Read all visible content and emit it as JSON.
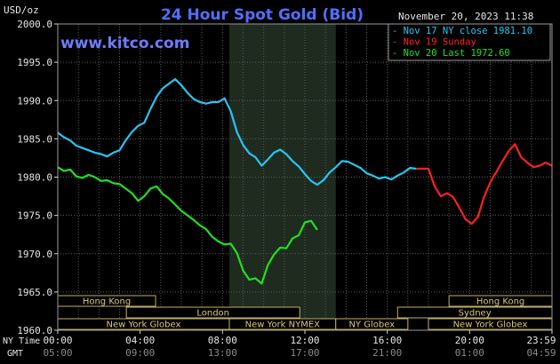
{
  "chart_data": {
    "type": "line",
    "title": "24 Hour Spot Gold (Bid)",
    "unit_label": "USD/oz",
    "watermark": "www.kitco.com",
    "timestamp": "November 20, 2023 11:38",
    "ylim": [
      1960,
      2000
    ],
    "yticks": [
      "2000.0",
      "1995.0",
      "1990.0",
      "1985.0",
      "1980.0",
      "1975.0",
      "1970.0",
      "1965.0",
      "1960.0"
    ],
    "xlim": [
      0,
      24
    ],
    "x_row_labels": {
      "ny": "NY Time",
      "gmt": "GMT"
    },
    "x_ticks_ny": [
      "00:00",
      "04:00",
      "08:00",
      "12:00",
      "16:00",
      "20:00",
      "23:59"
    ],
    "x_ticks_gmt": [
      "05:00",
      "09:00",
      "13:00",
      "17:00",
      "21:00",
      "01:00",
      "04:59"
    ],
    "shaded_hours": [
      8.33,
      13.5
    ],
    "legend": [
      {
        "text": "- Nov 17 NY close 1981.10",
        "color": "#27c6f4"
      },
      {
        "text": "- Nov 19 Sunday",
        "color": "#ff2020"
      },
      {
        "text": "- Nov 20 Last 1972.60",
        "color": "#20e020"
      }
    ],
    "sessions": [
      {
        "label": "Hong Kong",
        "start": 0,
        "end": 4.75,
        "row": 0
      },
      {
        "label": "Hong Kong",
        "start": 19,
        "end": 24,
        "row": 0
      },
      {
        "label": "London",
        "start": 3.33,
        "end": 11.75,
        "row": 1
      },
      {
        "label": "Sydney",
        "start": 16.5,
        "end": 24,
        "row": 1
      },
      {
        "label": "New York Globex",
        "start": 0,
        "end": 8.33,
        "row": 2
      },
      {
        "label": "New York NYMEX",
        "start": 8.33,
        "end": 13.5,
        "row": 2
      },
      {
        "label": "NY Globex",
        "start": 13.5,
        "end": 17.0,
        "row": 2
      },
      {
        "label": "New York Globex",
        "start": 18.0,
        "end": 24,
        "row": 2
      }
    ],
    "series": [
      {
        "name": "Nov 17",
        "color": "#27c6f4",
        "x": [
          0,
          0.3,
          0.6,
          0.9,
          1.2,
          1.5,
          1.8,
          2.1,
          2.4,
          2.7,
          3.0,
          3.3,
          3.6,
          3.9,
          4.2,
          4.5,
          4.8,
          5.1,
          5.4,
          5.7,
          6.0,
          6.3,
          6.6,
          6.9,
          7.2,
          7.5,
          7.8,
          8.1,
          8.4,
          8.7,
          9.0,
          9.3,
          9.6,
          9.9,
          10.2,
          10.5,
          10.8,
          11.1,
          11.4,
          11.7,
          12.0,
          12.3,
          12.6,
          12.9,
          13.2,
          13.5,
          13.8,
          14.1,
          14.4,
          14.7,
          15.0,
          15.3,
          15.6,
          15.9,
          16.2,
          16.5,
          16.8,
          17.1,
          17.4
        ],
        "values": [
          1985.8,
          1985.2,
          1984.8,
          1984.1,
          1983.8,
          1983.5,
          1983.2,
          1983.0,
          1982.7,
          1983.2,
          1983.5,
          1984.8,
          1985.9,
          1986.7,
          1987.1,
          1988.9,
          1990.5,
          1991.6,
          1992.2,
          1992.8,
          1992.0,
          1991.0,
          1990.2,
          1989.8,
          1989.6,
          1989.8,
          1989.8,
          1990.3,
          1988.6,
          1985.9,
          1984.2,
          1983.1,
          1982.6,
          1981.5,
          1982.3,
          1983.2,
          1983.6,
          1983.0,
          1982.1,
          1981.4,
          1980.4,
          1979.5,
          1979.0,
          1979.6,
          1980.6,
          1981.3,
          1982.1,
          1982.0,
          1981.6,
          1981.2,
          1980.5,
          1980.2,
          1979.8,
          1980.0,
          1979.7,
          1980.2,
          1980.6,
          1981.2,
          1981.1
        ]
      },
      {
        "name": "Nov 19",
        "color": "#ff2020",
        "x": [
          17.4,
          17.7,
          18.0,
          18.3,
          18.6,
          18.9,
          19.2,
          19.5,
          19.8,
          20.1,
          20.4,
          20.7,
          21.0,
          21.3,
          21.6,
          21.9,
          22.2,
          22.5,
          22.8,
          23.1,
          23.4,
          23.7,
          23.99
        ],
        "values": [
          1981.1,
          1981.1,
          1981.1,
          1978.8,
          1977.5,
          1977.9,
          1977.4,
          1976.0,
          1974.5,
          1973.9,
          1974.8,
          1977.4,
          1979.3,
          1980.7,
          1982.1,
          1983.4,
          1984.3,
          1982.6,
          1981.9,
          1981.3,
          1981.5,
          1981.9,
          1981.5
        ]
      },
      {
        "name": "Nov 20",
        "color": "#20e020",
        "x": [
          0,
          0.3,
          0.6,
          0.9,
          1.2,
          1.5,
          1.8,
          2.1,
          2.4,
          2.7,
          3.0,
          3.3,
          3.6,
          3.9,
          4.2,
          4.5,
          4.8,
          5.1,
          5.4,
          5.7,
          6.0,
          6.3,
          6.6,
          6.9,
          7.2,
          7.5,
          7.8,
          8.1,
          8.4,
          8.7,
          9.0,
          9.3,
          9.6,
          9.9,
          10.2,
          10.5,
          10.8,
          11.1,
          11.4,
          11.7,
          12.0,
          12.3,
          12.6
        ],
        "values": [
          1981.3,
          1980.8,
          1981.0,
          1980.1,
          1979.9,
          1980.3,
          1980.0,
          1979.5,
          1979.6,
          1979.2,
          1979.1,
          1978.5,
          1977.9,
          1976.9,
          1977.5,
          1978.5,
          1978.8,
          1977.8,
          1977.2,
          1976.4,
          1975.6,
          1975.0,
          1974.4,
          1973.7,
          1973.2,
          1972.2,
          1971.6,
          1971.2,
          1971.3,
          1970.1,
          1967.8,
          1966.6,
          1966.8,
          1966.1,
          1968.5,
          1969.9,
          1970.8,
          1970.7,
          1972.0,
          1972.4,
          1974.1,
          1974.3,
          1973.1
        ]
      }
    ]
  }
}
